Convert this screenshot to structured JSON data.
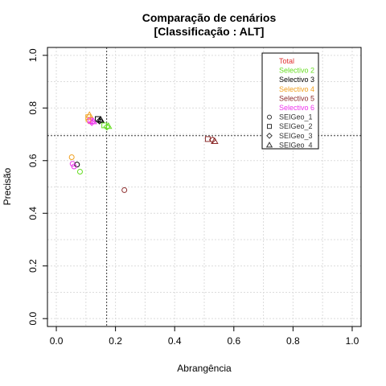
{
  "chart_data": {
    "type": "scatter",
    "title": "Comparação de cenários",
    "subtitle": "[Classificação : ALT]",
    "xlabel": "Abrangência",
    "ylabel": "Precisão",
    "xlim": [
      -0.03,
      1.03
    ],
    "ylim": [
      -0.03,
      1.03
    ],
    "x_ticks": [
      0.0,
      0.2,
      0.4,
      0.6,
      0.8,
      1.0
    ],
    "y_ticks": [
      0.0,
      0.2,
      0.4,
      0.6,
      0.8,
      1.0
    ],
    "x_tick_labels": [
      "0.0",
      "0.2",
      "0.4",
      "0.6",
      "0.8",
      "1.0"
    ],
    "y_tick_labels": [
      "0.0",
      "0.2",
      "0.4",
      "0.6",
      "0.8",
      "1.0"
    ],
    "grid": true,
    "reference_lines": {
      "x": 0.17,
      "y": 0.695
    },
    "legend_position": "top-right",
    "series": [
      {
        "name": "Total",
        "color": "#e03030"
      },
      {
        "name": "Selectivo 2",
        "color": "#66dd22"
      },
      {
        "name": "Selectivo 3",
        "color": "#000000"
      },
      {
        "name": "Selectivo 4",
        "color": "#f0a020"
      },
      {
        "name": "Selectivo 5",
        "color": "#8b2a2a"
      },
      {
        "name": "Selectivo 6",
        "color": "#ee33ee"
      }
    ],
    "marker_types": [
      {
        "name": "SEIGeo_1",
        "shape": "circle"
      },
      {
        "name": "SEIGeo_2",
        "shape": "square"
      },
      {
        "name": "SEIGeo_3",
        "shape": "diamond"
      },
      {
        "name": "SEIGeo_4",
        "shape": "triangle"
      }
    ],
    "points": [
      {
        "series": "Selectivo 4",
        "marker": "SEIGeo_1",
        "x": 0.052,
        "y": 0.613
      },
      {
        "series": "Selectivo 6",
        "marker": "SEIGeo_1",
        "x": 0.055,
        "y": 0.588
      },
      {
        "series": "Selectivo 3",
        "marker": "SEIGeo_1",
        "x": 0.07,
        "y": 0.585
      },
      {
        "series": "Selectivo 6",
        "marker": "SEIGeo_1",
        "x": 0.06,
        "y": 0.578
      },
      {
        "series": "Selectivo 2",
        "marker": "SEIGeo_1",
        "x": 0.08,
        "y": 0.558
      },
      {
        "series": "Selectivo 5",
        "marker": "SEIGeo_1",
        "x": 0.23,
        "y": 0.488
      },
      {
        "series": "Selectivo 4",
        "marker": "SEIGeo_2",
        "x": 0.108,
        "y": 0.765
      },
      {
        "series": "Selectivo 4",
        "marker": "SEIGeo_3",
        "x": 0.11,
        "y": 0.752
      },
      {
        "series": "Selectivo 6",
        "marker": "SEIGeo_2",
        "x": 0.115,
        "y": 0.752
      },
      {
        "series": "Selectivo 6",
        "marker": "SEIGeo_3",
        "x": 0.12,
        "y": 0.745
      },
      {
        "series": "Selectivo 3",
        "marker": "SEIGeo_2",
        "x": 0.14,
        "y": 0.758
      },
      {
        "series": "Selectivo 3",
        "marker": "SEIGeo_3",
        "x": 0.146,
        "y": 0.751
      },
      {
        "series": "Selectivo 4",
        "marker": "SEIGeo_4",
        "x": 0.112,
        "y": 0.773
      },
      {
        "series": "Selectivo 2",
        "marker": "SEIGeo_2",
        "x": 0.162,
        "y": 0.734
      },
      {
        "series": "Selectivo 2",
        "marker": "SEIGeo_3",
        "x": 0.171,
        "y": 0.728
      },
      {
        "series": "Selectivo 2",
        "marker": "SEIGeo_4",
        "x": 0.176,
        "y": 0.731
      },
      {
        "series": "Selectivo 6",
        "marker": "SEIGeo_4",
        "x": 0.125,
        "y": 0.749
      },
      {
        "series": "Selectivo 3",
        "marker": "SEIGeo_4",
        "x": 0.15,
        "y": 0.755
      },
      {
        "series": "Selectivo 5",
        "marker": "SEIGeo_2",
        "x": 0.512,
        "y": 0.682
      },
      {
        "series": "Selectivo 5",
        "marker": "SEIGeo_3",
        "x": 0.528,
        "y": 0.679
      },
      {
        "series": "Selectivo 5",
        "marker": "SEIGeo_4",
        "x": 0.535,
        "y": 0.674
      }
    ]
  }
}
